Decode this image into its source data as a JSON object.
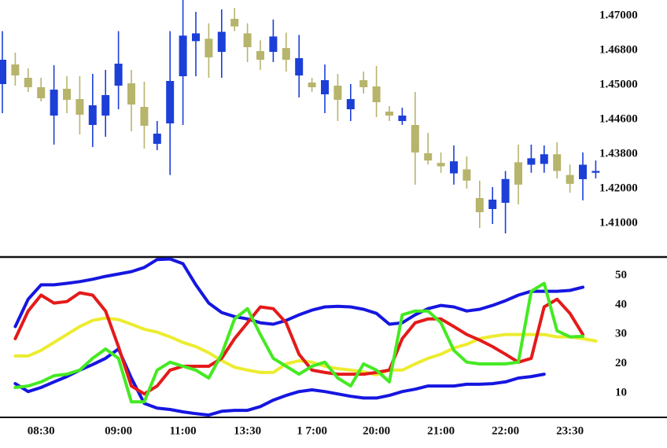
{
  "chart_data": [
    {
      "type": "candlestick",
      "up_color": "#1c3fd8",
      "down_color": "#b7b46c",
      "open": [
        1.45041,
        1.46064,
        1.45369,
        1.44973,
        1.44645,
        1.44955,
        1.44836,
        1.44473,
        1.44645,
        1.44991,
        1.45082,
        1.44745,
        1.44036,
        1.44509,
        1.4545,
        1.46853,
        1.46867,
        1.46718,
        1.46982,
        1.46898,
        1.46759,
        1.46718,
        1.46813,
        1.45491,
        1.45123,
        1.44891,
        1.44991,
        1.44718,
        1.45246,
        1.44982,
        1.44691,
        1.44564,
        1.44473,
        1.43818,
        1.43339,
        1.42794,
        1.43004,
        1.41728,
        1.4141,
        1.41591,
        1.43372,
        1.43246,
        1.43288,
        1.4379,
        1.42711,
        1.42492,
        1.42827
      ],
      "high": [
        1.46911,
        1.46677,
        1.45859,
        1.45369,
        1.46023,
        1.4545,
        1.4545,
        1.45573,
        1.45778,
        1.46911,
        1.45778,
        1.45164,
        1.44564,
        1.46911,
        1.47089,
        1.47022,
        1.46956,
        1.47036,
        1.47044,
        1.46956,
        1.46858,
        1.46978,
        1.46902,
        1.46889,
        1.45369,
        1.46064,
        1.45573,
        1.45041,
        1.45696,
        1.45982,
        1.44755,
        1.44736,
        1.44918,
        1.44291,
        1.43836,
        1.43999,
        1.43674,
        1.42417,
        1.42083,
        1.4292,
        1.44018,
        1.44018,
        1.43999,
        1.44072,
        1.43255,
        1.43836,
        1.43465
      ],
      "low": [
        1.44673,
        1.44991,
        1.44918,
        1.44809,
        1.44018,
        1.44673,
        1.44254,
        1.43963,
        1.442,
        1.44718,
        1.44327,
        1.43927,
        1.4389,
        1.42711,
        1.44473,
        1.4545,
        1.45369,
        1.45369,
        1.46911,
        1.46187,
        1.45778,
        1.46187,
        1.45696,
        1.44855,
        1.44918,
        1.44673,
        1.44564,
        1.44564,
        1.449,
        1.44627,
        1.44564,
        1.44473,
        1.42208,
        1.43255,
        1.42827,
        1.42208,
        1.42,
        1.40864,
        1.40977,
        1.40705,
        1.41546,
        1.42827,
        1.42827,
        1.42534,
        1.41886,
        1.4166,
        1.42534
      ],
      "close": [
        1.46309,
        1.45491,
        1.44973,
        1.44845,
        1.44945,
        1.44827,
        1.44655,
        1.44764,
        1.44882,
        1.46105,
        1.44773,
        1.44454,
        1.44272,
        1.45205,
        1.46885,
        1.46898,
        1.46432,
        1.46907,
        1.46938,
        1.46818,
        1.46309,
        1.4688,
        1.46309,
        1.46391,
        1.44973,
        1.45246,
        1.44827,
        1.44836,
        1.44973,
        1.448,
        1.44645,
        1.44645,
        1.43836,
        1.43465,
        1.43162,
        1.43423,
        1.42417,
        1.41319,
        1.41682,
        1.42501,
        1.42208,
        1.43581,
        1.4379,
        1.4292,
        1.4225,
        1.43246,
        1.4292
      ],
      "ylim": [
        1.40069,
        1.47089
      ],
      "yticks": [
        {
          "value": 1.47,
          "label": "1.47000"
        },
        {
          "value": 1.468,
          "label": "1.46800"
        },
        {
          "value": 1.45,
          "label": "1.45000"
        },
        {
          "value": 1.446,
          "label": "1.44600"
        },
        {
          "value": 1.438,
          "label": "1.43800"
        },
        {
          "value": 1.42,
          "label": "1.42000"
        },
        {
          "value": 1.41,
          "label": "1.41000"
        }
      ]
    },
    {
      "type": "line",
      "categories": [
        null,
        null,
        null,
        "08:30",
        null,
        null,
        null,
        null,
        null,
        "09:00",
        null,
        null,
        null,
        null,
        "11:00",
        null,
        null,
        null,
        null,
        "13:30",
        null,
        null,
        null,
        null,
        "1 7:00",
        null,
        null,
        null,
        null,
        "20:00",
        null,
        null,
        null,
        null,
        "21:00",
        null,
        null,
        null,
        null,
        "22:00",
        null,
        null,
        null,
        null,
        "23:30",
        null,
        null
      ],
      "series": [
        {
          "color": "#1616e0",
          "values": [
            null,
            32.6,
            41.9,
            46.8,
            46.8,
            47.3,
            47.9,
            48.7,
            49.7,
            50.5,
            51.3,
            52.7,
            55.4,
            55.6,
            54.0,
            46.8,
            40.6,
            37.4,
            36.0,
            35.2,
            33.9,
            33.4,
            34.7,
            36.6,
            38.2,
            39.3,
            39.5,
            39.3,
            38.5,
            37.1,
            33.4,
            33.9,
            36.6,
            38.7,
            39.8,
            39.3,
            37.9,
            38.5,
            39.8,
            41.4,
            43.3,
            44.6,
            44.6,
            44.6,
            44.9,
            46.0,
            null
          ]
        },
        {
          "color": "#1616e0",
          "values": [
            null,
            13.2,
            10.5,
            11.9,
            13.8,
            15.6,
            17.8,
            19.7,
            21.8,
            25.0,
            15.1,
            6.5,
            4.9,
            4.4,
            3.6,
            3.0,
            2.5,
            3.8,
            4.1,
            4.1,
            5.4,
            7.6,
            9.2,
            10.5,
            11.1,
            10.5,
            9.7,
            8.9,
            8.3,
            8.3,
            9.2,
            10.5,
            11.3,
            12.4,
            12.4,
            12.4,
            13.0,
            13.0,
            13.2,
            13.8,
            15.1,
            15.6,
            16.4,
            null,
            null,
            null,
            null
          ]
        },
        {
          "color": "#ecec30",
          "values": [
            null,
            22.6,
            22.6,
            24.5,
            27.2,
            29.9,
            32.6,
            34.7,
            35.5,
            35.0,
            33.4,
            31.7,
            30.7,
            29.1,
            27.2,
            25.8,
            23.7,
            21.0,
            18.8,
            17.8,
            17.0,
            17.0,
            19.9,
            21.0,
            20.5,
            19.1,
            18.3,
            17.8,
            17.2,
            16.2,
            17.8,
            17.8,
            19.9,
            21.8,
            23.2,
            25.3,
            26.6,
            28.5,
            29.3,
            29.9,
            29.9,
            29.9,
            29.9,
            29.1,
            29.1,
            28.5,
            27.7
          ]
        },
        {
          "color": "#e41a1a",
          "values": [
            null,
            28.5,
            37.9,
            43.3,
            40.6,
            41.1,
            44.1,
            43.3,
            37.9,
            25.8,
            12.4,
            9.7,
            12.4,
            17.8,
            19.1,
            19.1,
            19.1,
            21.8,
            28.5,
            33.9,
            39.3,
            38.7,
            33.9,
            23.2,
            17.8,
            17.0,
            16.4,
            16.4,
            16.4,
            17.0,
            17.8,
            28.5,
            33.9,
            35.2,
            35.2,
            32.6,
            29.9,
            28.0,
            25.8,
            23.2,
            20.5,
            21.8,
            39.3,
            41.9,
            37.1,
            29.9,
            null
          ]
        },
        {
          "color": "#44ea22",
          "values": [
            null,
            11.9,
            12.4,
            13.8,
            15.9,
            16.4,
            17.8,
            21.8,
            25.0,
            21.8,
            7.0,
            7.0,
            17.8,
            20.5,
            19.1,
            17.8,
            15.1,
            23.2,
            35.2,
            38.7,
            29.9,
            21.8,
            19.1,
            16.4,
            19.1,
            20.5,
            15.1,
            12.4,
            19.9,
            17.8,
            13.8,
            36.6,
            37.9,
            37.9,
            33.9,
            24.5,
            20.5,
            19.9,
            19.9,
            19.9,
            20.5,
            44.6,
            47.3,
            31.2,
            29.1,
            29.3,
            null
          ]
        }
      ],
      "ylim": [
        2,
        56
      ],
      "yticks": [
        50,
        40,
        30,
        20,
        10
      ]
    }
  ]
}
